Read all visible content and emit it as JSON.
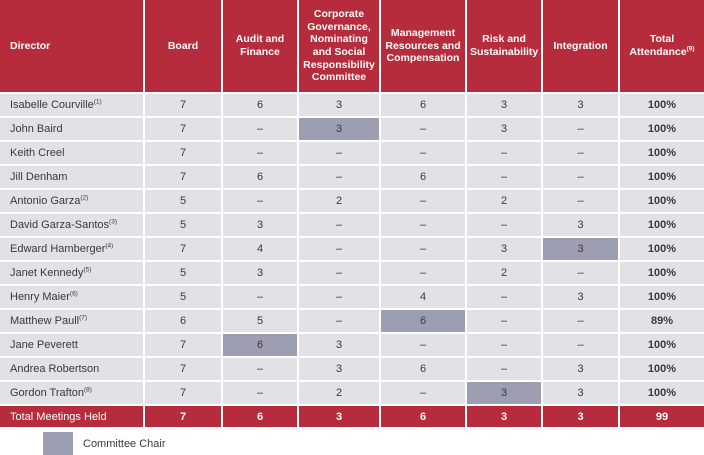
{
  "colors": {
    "header_red": "#B72C3C",
    "row_gray": "#E1E1E6",
    "chair_gray": "#9D9EB1",
    "header_text": "#FFFFFF",
    "body_text": "#3A3A3A"
  },
  "table": {
    "columns": [
      {
        "label": "Director",
        "footnote": ""
      },
      {
        "label": "Board",
        "footnote": ""
      },
      {
        "label": "Audit and Finance",
        "footnote": ""
      },
      {
        "label": "Corporate Governance, Nominating and Social Responsibility Committee",
        "footnote": ""
      },
      {
        "label": "Management Resources and Compensation",
        "footnote": ""
      },
      {
        "label": "Risk and Sustainability",
        "footnote": ""
      },
      {
        "label": "Integration",
        "footnote": ""
      },
      {
        "label": "Total Attendance",
        "footnote": "(9)"
      }
    ],
    "rows": [
      {
        "director": "Isabelle Courville",
        "footnote": "(1)",
        "values": [
          "7",
          "6",
          "3",
          "6",
          "3",
          "3"
        ],
        "chair_index": -1,
        "total": "100%"
      },
      {
        "director": "John Baird",
        "footnote": "",
        "values": [
          "7",
          "–",
          "3",
          "–",
          "3",
          "–"
        ],
        "chair_index": 2,
        "total": "100%"
      },
      {
        "director": "Keith Creel",
        "footnote": "",
        "values": [
          "7",
          "–",
          "–",
          "–",
          "–",
          "–"
        ],
        "chair_index": -1,
        "total": "100%"
      },
      {
        "director": "Jill Denham",
        "footnote": "",
        "values": [
          "7",
          "6",
          "–",
          "6",
          "–",
          "–"
        ],
        "chair_index": -1,
        "total": "100%"
      },
      {
        "director": "Antonio Garza",
        "footnote": "(2)",
        "values": [
          "5",
          "–",
          "2",
          "–",
          "2",
          "–"
        ],
        "chair_index": -1,
        "total": "100%"
      },
      {
        "director": "David Garza-Santos",
        "footnote": "(3)",
        "values": [
          "5",
          "3",
          "–",
          "–",
          "–",
          "3"
        ],
        "chair_index": -1,
        "total": "100%"
      },
      {
        "director": "Edward Hamberger",
        "footnote": "(4)",
        "values": [
          "7",
          "4",
          "–",
          "–",
          "3",
          "3"
        ],
        "chair_index": 5,
        "total": "100%"
      },
      {
        "director": "Janet Kennedy",
        "footnote": "(5)",
        "values": [
          "5",
          "3",
          "–",
          "–",
          "2",
          "–"
        ],
        "chair_index": -1,
        "total": "100%"
      },
      {
        "director": "Henry Maier",
        "footnote": "(6)",
        "values": [
          "5",
          "–",
          "–",
          "4",
          "–",
          "3"
        ],
        "chair_index": -1,
        "total": "100%"
      },
      {
        "director": "Matthew Paull",
        "footnote": "(7)",
        "values": [
          "6",
          "5",
          "–",
          "6",
          "–",
          "–"
        ],
        "chair_index": 3,
        "total": "89%"
      },
      {
        "director": "Jane Peverett",
        "footnote": "",
        "values": [
          "7",
          "6",
          "3",
          "–",
          "–",
          "–"
        ],
        "chair_index": 1,
        "total": "100%"
      },
      {
        "director": "Andrea Robertson",
        "footnote": "",
        "values": [
          "7",
          "–",
          "3",
          "6",
          "–",
          "3"
        ],
        "chair_index": -1,
        "total": "100%"
      },
      {
        "director": "Gordon Trafton",
        "footnote": "(8)",
        "values": [
          "7",
          "–",
          "2",
          "–",
          "3",
          "3"
        ],
        "chair_index": 4,
        "total": "100%"
      }
    ],
    "total_row": {
      "label": "Total Meetings Held",
      "values": [
        "7",
        "6",
        "3",
        "6",
        "3",
        "3"
      ],
      "total": "99"
    }
  },
  "legend": {
    "label": "Committee Chair"
  }
}
